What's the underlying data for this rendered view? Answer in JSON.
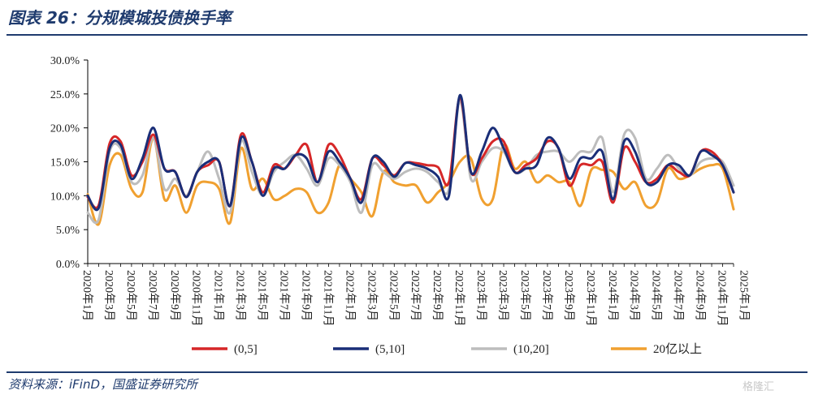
{
  "header": {
    "title": "图表 26：分规模城投债换手率"
  },
  "footer": {
    "source": "资料来源：iFinD，国盛证券研究所",
    "watermark": "格隆汇"
  },
  "chart_data": {
    "type": "line",
    "title": "",
    "xlabel": "",
    "ylabel": "",
    "ylim": [
      0,
      30
    ],
    "y_ticks": [
      "0.0%",
      "5.0%",
      "10.0%",
      "15.0%",
      "20.0%",
      "25.0%",
      "30.0%"
    ],
    "y_tick_values": [
      0,
      5,
      10,
      15,
      20,
      25,
      30
    ],
    "x_tick_labels": [
      "2020年1月",
      "2020年3月",
      "2020年5月",
      "2020年7月",
      "2020年9月",
      "2020年11月",
      "2021年1月",
      "2021年3月",
      "2021年5月",
      "2021年7月",
      "2021年9月",
      "2021年11月",
      "2022年1月",
      "2022年3月",
      "2022年5月",
      "2022年7月",
      "2022年9月",
      "2022年11月",
      "2023年1月",
      "2023年3月",
      "2023年5月",
      "2023年7月",
      "2023年9月",
      "2023年11月",
      "2024年1月",
      "2024年3月",
      "2024年5月",
      "2024年7月",
      "2024年9月",
      "2024年11月",
      "2025年1月"
    ],
    "grid": false,
    "legend_position": "bottom",
    "series": [
      {
        "name": "(0,5]",
        "color": "#d62728",
        "values": [
          9.8,
          8.6,
          17.7,
          18.0,
          13.0,
          15.0,
          19.0,
          14.0,
          13.5,
          9.8,
          13.5,
          14.5,
          15.0,
          8.5,
          19.0,
          15.0,
          10.5,
          14.5,
          14.0,
          16.0,
          17.5,
          12.0,
          17.5,
          16.0,
          12.5,
          9.5,
          15.5,
          14.5,
          13.0,
          14.8,
          14.8,
          14.5,
          14.2,
          12.0,
          24.5,
          13.5,
          15.5,
          18.0,
          18.0,
          13.5,
          14.5,
          15.5,
          18.0,
          17.0,
          11.5,
          14.5,
          14.5,
          15.0,
          9.0,
          17.0,
          15.0,
          12.0,
          12.5,
          14.5,
          13.5,
          13.0,
          16.5,
          16.5,
          14.5,
          10.5
        ]
      },
      {
        "name": "(5,10]",
        "color": "#1a2e78",
        "values": [
          10.0,
          8.2,
          17.0,
          17.5,
          12.5,
          15.5,
          20.0,
          14.0,
          13.5,
          9.8,
          13.5,
          15.0,
          15.0,
          8.5,
          18.5,
          15.0,
          10.0,
          14.0,
          14.0,
          16.0,
          15.5,
          12.0,
          16.5,
          15.0,
          12.5,
          9.0,
          15.5,
          15.0,
          12.8,
          14.8,
          14.5,
          14.0,
          12.8,
          10.0,
          24.8,
          13.5,
          16.5,
          20.0,
          17.0,
          13.5,
          14.0,
          14.5,
          18.5,
          17.0,
          12.5,
          15.5,
          15.5,
          16.5,
          9.5,
          18.0,
          16.5,
          12.0,
          12.0,
          14.5,
          14.5,
          13.0,
          16.5,
          16.0,
          14.5,
          10.5
        ]
      },
      {
        "name": "(10,20]",
        "color": "#bdbdbd",
        "values": [
          7.5,
          6.5,
          16.5,
          17.0,
          12.0,
          13.0,
          18.5,
          11.0,
          12.5,
          10.0,
          13.5,
          16.5,
          12.5,
          7.5,
          18.0,
          13.5,
          10.0,
          13.5,
          15.0,
          16.0,
          14.0,
          11.5,
          15.5,
          14.5,
          12.0,
          7.5,
          14.5,
          13.5,
          12.5,
          13.5,
          14.0,
          13.5,
          12.0,
          11.0,
          24.0,
          12.5,
          15.0,
          17.0,
          16.5,
          13.5,
          14.0,
          16.0,
          16.5,
          16.5,
          15.0,
          16.5,
          16.5,
          18.5,
          10.5,
          19.0,
          18.5,
          12.5,
          14.0,
          16.0,
          14.0,
          13.0,
          15.0,
          15.5,
          15.0,
          11.5
        ]
      },
      {
        "name": "20亿以上",
        "color": "#f0a030",
        "values": [
          10.2,
          5.8,
          14.5,
          16.0,
          11.0,
          10.5,
          18.5,
          9.5,
          11.5,
          7.5,
          11.5,
          12.0,
          11.0,
          6.0,
          17.0,
          11.0,
          12.5,
          9.5,
          10.0,
          11.0,
          10.5,
          7.5,
          9.0,
          14.5,
          12.5,
          10.5,
          7.0,
          13.5,
          12.0,
          11.5,
          11.5,
          9.0,
          10.5,
          12.0,
          15.0,
          15.5,
          9.5,
          9.5,
          17.5,
          14.0,
          15.0,
          12.0,
          13.0,
          12.0,
          12.0,
          8.5,
          13.8,
          13.8,
          13.5,
          11.0,
          12.0,
          8.5,
          9.0,
          14.0,
          12.5,
          13.0,
          14.0,
          14.5,
          14.0,
          8.0
        ]
      }
    ]
  }
}
